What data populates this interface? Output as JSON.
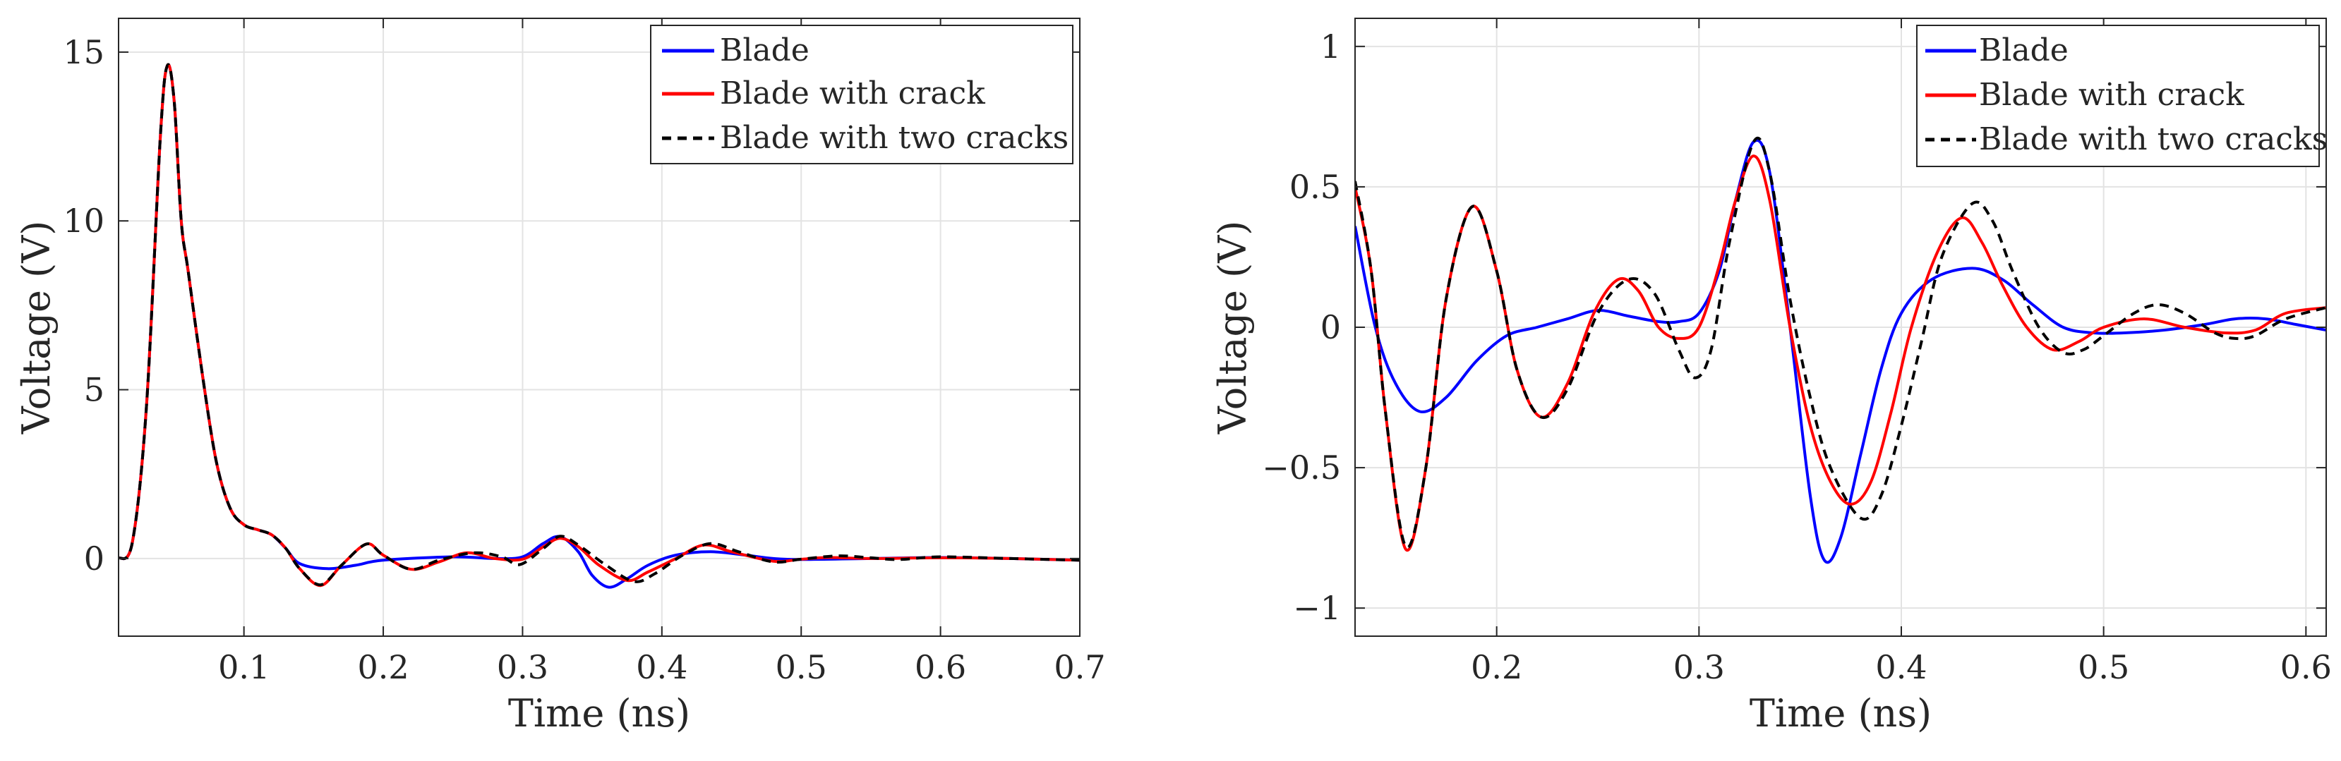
{
  "colors": {
    "blade": "#0000ff",
    "crack": "#ff0000",
    "two_cracks": "#000000"
  },
  "chart_data": [
    {
      "type": "line",
      "xlabel": "Time (ns)",
      "ylabel": "Voltage (V)",
      "xlim": [
        0.01,
        0.7
      ],
      "ylim": [
        -2.3,
        16
      ],
      "xticks": [
        0.1,
        0.2,
        0.3,
        0.4,
        0.5,
        0.6,
        0.7
      ],
      "xtick_labels": [
        "0.1",
        "0.2",
        "0.3",
        "0.4",
        "0.5",
        "0.6",
        "0.7"
      ],
      "yticks": [
        0,
        5,
        10,
        15
      ],
      "ytick_labels": [
        "0",
        "5",
        "10",
        "15"
      ],
      "grid": true,
      "legend_position": "top-right",
      "series": [
        {
          "name": "Blade",
          "style": "solid",
          "color": "#0000ff",
          "points": [
            [
              0.01,
              0
            ],
            [
              0.02,
              0.5
            ],
            [
              0.03,
              4.5
            ],
            [
              0.04,
              12.5
            ],
            [
              0.045,
              14.6
            ],
            [
              0.05,
              13.5
            ],
            [
              0.055,
              10
            ],
            [
              0.06,
              8.5
            ],
            [
              0.07,
              5.5
            ],
            [
              0.08,
              2.9
            ],
            [
              0.09,
              1.5
            ],
            [
              0.1,
              1.0
            ],
            [
              0.11,
              0.85
            ],
            [
              0.12,
              0.7
            ],
            [
              0.13,
              0.3
            ],
            [
              0.14,
              -0.15
            ],
            [
              0.16,
              -0.3
            ],
            [
              0.18,
              -0.2
            ],
            [
              0.2,
              -0.05
            ],
            [
              0.25,
              0.05
            ],
            [
              0.28,
              0.0
            ],
            [
              0.3,
              0.05
            ],
            [
              0.315,
              0.45
            ],
            [
              0.327,
              0.65
            ],
            [
              0.34,
              0.2
            ],
            [
              0.35,
              -0.5
            ],
            [
              0.362,
              -0.85
            ],
            [
              0.375,
              -0.6
            ],
            [
              0.39,
              -0.2
            ],
            [
              0.41,
              0.1
            ],
            [
              0.435,
              0.2
            ],
            [
              0.46,
              0.1
            ],
            [
              0.48,
              0.0
            ],
            [
              0.5,
              -0.03
            ],
            [
              0.55,
              0.0
            ],
            [
              0.6,
              0.03
            ],
            [
              0.65,
              0.0
            ],
            [
              0.7,
              -0.05
            ]
          ]
        },
        {
          "name": "Blade with crack",
          "style": "solid",
          "color": "#ff0000",
          "points": [
            [
              0.01,
              0
            ],
            [
              0.02,
              0.5
            ],
            [
              0.03,
              4.5
            ],
            [
              0.04,
              12.5
            ],
            [
              0.045,
              14.6
            ],
            [
              0.05,
              13.5
            ],
            [
              0.055,
              10
            ],
            [
              0.06,
              8.5
            ],
            [
              0.07,
              5.5
            ],
            [
              0.08,
              2.9
            ],
            [
              0.09,
              1.5
            ],
            [
              0.1,
              1.0
            ],
            [
              0.11,
              0.85
            ],
            [
              0.12,
              0.7
            ],
            [
              0.13,
              0.3
            ],
            [
              0.14,
              -0.3
            ],
            [
              0.155,
              -0.8
            ],
            [
              0.17,
              -0.2
            ],
            [
              0.188,
              0.43
            ],
            [
              0.2,
              0.1
            ],
            [
              0.22,
              -0.32
            ],
            [
              0.24,
              -0.1
            ],
            [
              0.26,
              0.17
            ],
            [
              0.28,
              0.0
            ],
            [
              0.3,
              -0.02
            ],
            [
              0.315,
              0.35
            ],
            [
              0.327,
              0.6
            ],
            [
              0.34,
              0.35
            ],
            [
              0.355,
              -0.2
            ],
            [
              0.375,
              -0.65
            ],
            [
              0.39,
              -0.4
            ],
            [
              0.41,
              0.0
            ],
            [
              0.43,
              0.4
            ],
            [
              0.45,
              0.2
            ],
            [
              0.48,
              -0.08
            ],
            [
              0.5,
              -0.02
            ],
            [
              0.52,
              0.03
            ],
            [
              0.55,
              0.0
            ],
            [
              0.6,
              0.02
            ],
            [
              0.65,
              0.0
            ],
            [
              0.7,
              -0.05
            ]
          ]
        },
        {
          "name": "Blade with two cracks",
          "style": "dashed",
          "color": "#000000",
          "points": [
            [
              0.01,
              0
            ],
            [
              0.02,
              0.5
            ],
            [
              0.03,
              4.5
            ],
            [
              0.04,
              12.5
            ],
            [
              0.045,
              14.6
            ],
            [
              0.05,
              13.5
            ],
            [
              0.055,
              10
            ],
            [
              0.06,
              8.5
            ],
            [
              0.07,
              5.5
            ],
            [
              0.08,
              2.9
            ],
            [
              0.09,
              1.5
            ],
            [
              0.1,
              1.0
            ],
            [
              0.11,
              0.85
            ],
            [
              0.12,
              0.7
            ],
            [
              0.13,
              0.3
            ],
            [
              0.14,
              -0.3
            ],
            [
              0.155,
              -0.78
            ],
            [
              0.17,
              -0.2
            ],
            [
              0.188,
              0.43
            ],
            [
              0.2,
              0.1
            ],
            [
              0.22,
              -0.32
            ],
            [
              0.24,
              -0.05
            ],
            [
              0.265,
              0.17
            ],
            [
              0.285,
              0.05
            ],
            [
              0.298,
              -0.18
            ],
            [
              0.315,
              0.3
            ],
            [
              0.327,
              0.66
            ],
            [
              0.34,
              0.4
            ],
            [
              0.36,
              -0.2
            ],
            [
              0.38,
              -0.68
            ],
            [
              0.395,
              -0.45
            ],
            [
              0.415,
              0.1
            ],
            [
              0.435,
              0.44
            ],
            [
              0.455,
              0.2
            ],
            [
              0.48,
              -0.1
            ],
            [
              0.5,
              -0.02
            ],
            [
              0.527,
              0.08
            ],
            [
              0.55,
              0.02
            ],
            [
              0.57,
              -0.03
            ],
            [
              0.6,
              0.05
            ],
            [
              0.65,
              0.0
            ],
            [
              0.7,
              -0.05
            ]
          ]
        }
      ]
    },
    {
      "type": "line",
      "xlabel": "Time (ns)",
      "ylabel": "Voltage (V)",
      "xlim": [
        0.13,
        0.61
      ],
      "ylim": [
        -1.1,
        1.1
      ],
      "xticks": [
        0.2,
        0.3,
        0.4,
        0.5,
        0.6
      ],
      "xtick_labels": [
        "0.2",
        "0.3",
        "0.4",
        "0.5",
        "0.6"
      ],
      "yticks": [
        -1,
        -0.5,
        0,
        0.5,
        1
      ],
      "ytick_labels": [
        "−1",
        "−0.5",
        "0",
        "0.5",
        "1"
      ],
      "grid": true,
      "legend_position": "top-right",
      "series": [
        {
          "name": "Blade",
          "style": "solid",
          "color": "#0000ff",
          "points": [
            [
              0.13,
              0.36
            ],
            [
              0.14,
              0.0
            ],
            [
              0.15,
              -0.2
            ],
            [
              0.162,
              -0.3
            ],
            [
              0.175,
              -0.25
            ],
            [
              0.19,
              -0.12
            ],
            [
              0.205,
              -0.03
            ],
            [
              0.22,
              0.0
            ],
            [
              0.235,
              0.03
            ],
            [
              0.25,
              0.06
            ],
            [
              0.265,
              0.04
            ],
            [
              0.28,
              0.02
            ],
            [
              0.29,
              0.02
            ],
            [
              0.3,
              0.05
            ],
            [
              0.31,
              0.2
            ],
            [
              0.318,
              0.45
            ],
            [
              0.327,
              0.66
            ],
            [
              0.335,
              0.55
            ],
            [
              0.345,
              0.0
            ],
            [
              0.355,
              -0.6
            ],
            [
              0.362,
              -0.83
            ],
            [
              0.37,
              -0.75
            ],
            [
              0.38,
              -0.45
            ],
            [
              0.39,
              -0.15
            ],
            [
              0.4,
              0.05
            ],
            [
              0.415,
              0.17
            ],
            [
              0.435,
              0.21
            ],
            [
              0.45,
              0.17
            ],
            [
              0.465,
              0.08
            ],
            [
              0.48,
              0.0
            ],
            [
              0.495,
              -0.02
            ],
            [
              0.51,
              -0.02
            ],
            [
              0.53,
              -0.01
            ],
            [
              0.55,
              0.01
            ],
            [
              0.565,
              0.03
            ],
            [
              0.58,
              0.03
            ],
            [
              0.595,
              0.01
            ],
            [
              0.61,
              -0.01
            ]
          ]
        },
        {
          "name": "Blade with crack",
          "style": "solid",
          "color": "#ff0000",
          "points": [
            [
              0.13,
              0.5
            ],
            [
              0.138,
              0.2
            ],
            [
              0.145,
              -0.3
            ],
            [
              0.155,
              -0.79
            ],
            [
              0.165,
              -0.5
            ],
            [
              0.175,
              0.1
            ],
            [
              0.188,
              0.43
            ],
            [
              0.2,
              0.2
            ],
            [
              0.21,
              -0.15
            ],
            [
              0.222,
              -0.32
            ],
            [
              0.235,
              -0.2
            ],
            [
              0.248,
              0.05
            ],
            [
              0.26,
              0.17
            ],
            [
              0.27,
              0.13
            ],
            [
              0.28,
              0.0
            ],
            [
              0.29,
              -0.04
            ],
            [
              0.3,
              0.0
            ],
            [
              0.31,
              0.22
            ],
            [
              0.318,
              0.45
            ],
            [
              0.327,
              0.61
            ],
            [
              0.335,
              0.45
            ],
            [
              0.345,
              0.0
            ],
            [
              0.355,
              -0.35
            ],
            [
              0.365,
              -0.55
            ],
            [
              0.375,
              -0.63
            ],
            [
              0.385,
              -0.55
            ],
            [
              0.395,
              -0.3
            ],
            [
              0.405,
              0.0
            ],
            [
              0.418,
              0.27
            ],
            [
              0.43,
              0.39
            ],
            [
              0.44,
              0.3
            ],
            [
              0.45,
              0.15
            ],
            [
              0.462,
              0.0
            ],
            [
              0.475,
              -0.08
            ],
            [
              0.488,
              -0.05
            ],
            [
              0.5,
              0.0
            ],
            [
              0.52,
              0.03
            ],
            [
              0.54,
              0.0
            ],
            [
              0.56,
              -0.02
            ],
            [
              0.575,
              -0.01
            ],
            [
              0.59,
              0.05
            ],
            [
              0.61,
              0.07
            ]
          ]
        },
        {
          "name": "Blade with two cracks",
          "style": "dashed",
          "color": "#000000",
          "points": [
            [
              0.13,
              0.52
            ],
            [
              0.138,
              0.2
            ],
            [
              0.145,
              -0.3
            ],
            [
              0.155,
              -0.78
            ],
            [
              0.165,
              -0.5
            ],
            [
              0.175,
              0.1
            ],
            [
              0.188,
              0.43
            ],
            [
              0.2,
              0.2
            ],
            [
              0.21,
              -0.15
            ],
            [
              0.222,
              -0.32
            ],
            [
              0.235,
              -0.22
            ],
            [
              0.25,
              0.05
            ],
            [
              0.265,
              0.17
            ],
            [
              0.278,
              0.12
            ],
            [
              0.29,
              -0.08
            ],
            [
              0.298,
              -0.18
            ],
            [
              0.306,
              -0.08
            ],
            [
              0.315,
              0.3
            ],
            [
              0.327,
              0.66
            ],
            [
              0.335,
              0.55
            ],
            [
              0.345,
              0.1
            ],
            [
              0.355,
              -0.25
            ],
            [
              0.365,
              -0.5
            ],
            [
              0.38,
              -0.68
            ],
            [
              0.39,
              -0.6
            ],
            [
              0.4,
              -0.35
            ],
            [
              0.41,
              -0.05
            ],
            [
              0.42,
              0.25
            ],
            [
              0.435,
              0.44
            ],
            [
              0.445,
              0.38
            ],
            [
              0.455,
              0.2
            ],
            [
              0.468,
              0.0
            ],
            [
              0.48,
              -0.09
            ],
            [
              0.49,
              -0.08
            ],
            [
              0.5,
              -0.03
            ],
            [
              0.515,
              0.05
            ],
            [
              0.527,
              0.08
            ],
            [
              0.54,
              0.05
            ],
            [
              0.555,
              -0.02
            ],
            [
              0.565,
              -0.04
            ],
            [
              0.575,
              -0.03
            ],
            [
              0.59,
              0.03
            ],
            [
              0.61,
              0.07
            ]
          ]
        }
      ]
    }
  ]
}
